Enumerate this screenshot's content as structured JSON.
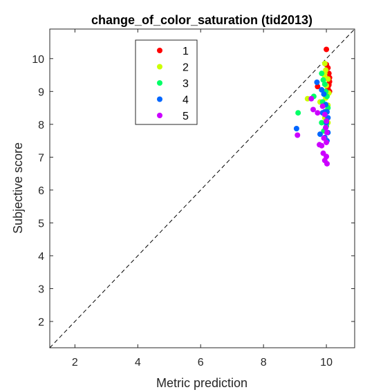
{
  "chart_data": {
    "type": "scatter",
    "title": "change_of_color_saturation (tid2013)",
    "xlabel": "Metric prediction",
    "ylabel": "Subjective score",
    "xlim": [
      1.2,
      10.9
    ],
    "ylim": [
      1.2,
      10.9
    ],
    "xticks": [
      2,
      4,
      6,
      8,
      10
    ],
    "yticks": [
      2,
      3,
      4,
      5,
      6,
      7,
      8,
      9,
      10
    ],
    "grid": false,
    "legend_position": "top-left",
    "reference_line": "identity (y = x), dashed black",
    "series": [
      {
        "name": "1",
        "color": "#ff0000",
        "points": [
          [
            10.0,
            10.28
          ],
          [
            10.05,
            9.72
          ],
          [
            10.08,
            9.55
          ],
          [
            10.1,
            9.42
          ],
          [
            10.1,
            9.3
          ],
          [
            10.08,
            9.2
          ],
          [
            10.05,
            9.1
          ],
          [
            10.1,
            9.0
          ],
          [
            9.72,
            9.15
          ],
          [
            10.0,
            9.82
          ]
        ]
      },
      {
        "name": "2",
        "color": "#ccff00",
        "points": [
          [
            9.95,
            9.85
          ],
          [
            9.98,
            9.65
          ],
          [
            9.93,
            9.5
          ],
          [
            9.97,
            9.4
          ],
          [
            10.05,
            9.38
          ],
          [
            10.0,
            9.18
          ],
          [
            10.08,
            8.95
          ],
          [
            9.98,
            8.8
          ],
          [
            10.05,
            8.58
          ],
          [
            10.0,
            8.4
          ],
          [
            9.95,
            8.2
          ],
          [
            10.05,
            8.05
          ],
          [
            9.4,
            8.78
          ],
          [
            9.8,
            8.68
          ],
          [
            9.95,
            9.55
          ]
        ]
      },
      {
        "name": "3",
        "color": "#00ff66",
        "points": [
          [
            9.85,
            9.55
          ],
          [
            9.9,
            9.35
          ],
          [
            9.95,
            9.22
          ],
          [
            9.98,
            9.0
          ],
          [
            10.02,
            8.85
          ],
          [
            9.88,
            8.68
          ],
          [
            10.05,
            8.5
          ],
          [
            9.95,
            8.3
          ],
          [
            9.85,
            8.05
          ],
          [
            9.1,
            8.35
          ],
          [
            9.6,
            8.85
          ],
          [
            10.0,
            7.95
          ],
          [
            9.92,
            7.8
          ]
        ]
      },
      {
        "name": "4",
        "color": "#0066ff",
        "points": [
          [
            9.05,
            7.87
          ],
          [
            9.7,
            9.28
          ],
          [
            9.85,
            9.05
          ],
          [
            9.92,
            8.92
          ],
          [
            9.98,
            8.6
          ],
          [
            10.02,
            8.38
          ],
          [
            9.95,
            8.38
          ],
          [
            9.88,
            8.35
          ],
          [
            10.05,
            8.2
          ],
          [
            10.0,
            8.05
          ],
          [
            9.98,
            7.9
          ],
          [
            10.05,
            7.75
          ],
          [
            9.95,
            7.6
          ],
          [
            10.02,
            7.5
          ],
          [
            9.8,
            7.7
          ]
        ]
      },
      {
        "name": "5",
        "color": "#cc00ff",
        "points": [
          [
            9.08,
            7.67
          ],
          [
            9.52,
            8.78
          ],
          [
            9.58,
            8.45
          ],
          [
            9.72,
            8.35
          ],
          [
            9.88,
            8.55
          ],
          [
            9.95,
            8.3
          ],
          [
            10.0,
            8.1
          ],
          [
            9.98,
            7.9
          ],
          [
            10.02,
            7.75
          ],
          [
            9.92,
            7.58
          ],
          [
            10.0,
            7.45
          ],
          [
            9.85,
            7.35
          ],
          [
            9.9,
            7.12
          ],
          [
            10.0,
            7.02
          ],
          [
            9.95,
            6.9
          ],
          [
            10.02,
            6.8
          ],
          [
            9.78,
            7.38
          ]
        ]
      }
    ]
  }
}
